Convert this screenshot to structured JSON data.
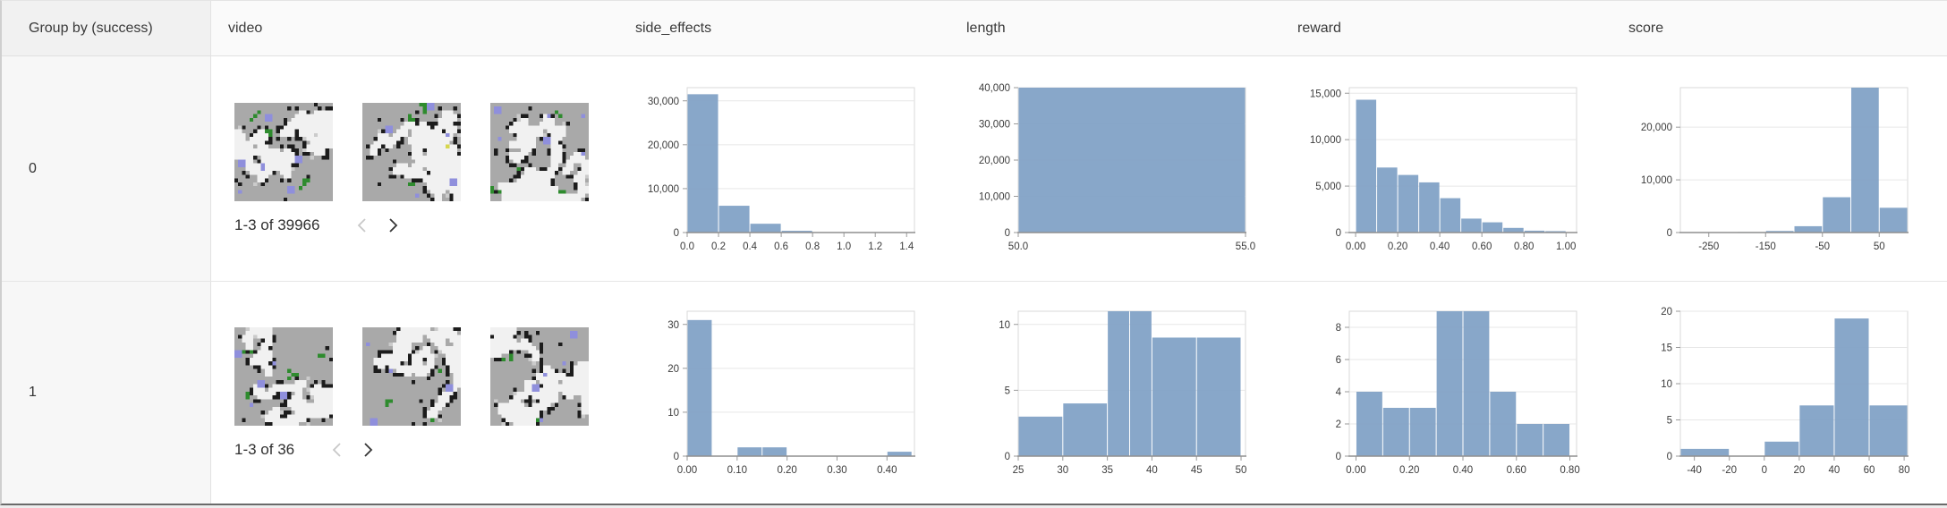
{
  "header": {
    "group_label": "Group by (success)",
    "columns": [
      "video",
      "side_effects",
      "length",
      "reward",
      "score"
    ]
  },
  "palette": {
    "bar_color": "#82a2c6",
    "thumb_base": "#a9a9a9",
    "thumb_path": "#f1f1f1",
    "thumb_light": "#cbcbcb",
    "thumb_wall": "#1c1c1c",
    "thumb_blue": "#8f8fdc",
    "thumb_green": "#2e8b2e",
    "thumb_yellow": "#d6d64e"
  },
  "rows": [
    {
      "group_value": "0",
      "video": {
        "pagination_label": "1-3 of 39966",
        "prev_enabled": false,
        "next_enabled": true,
        "thumbnails": [
          {
            "seed": 11,
            "yellow": false
          },
          {
            "seed": 47,
            "yellow": true
          },
          {
            "seed": 83,
            "yellow": false
          }
        ]
      }
    },
    {
      "group_value": "1",
      "video": {
        "pagination_label": "1-3 of 36",
        "prev_enabled": false,
        "next_enabled": true,
        "thumbnails": [
          {
            "seed": 19,
            "yellow": false
          },
          {
            "seed": 29,
            "yellow": false
          },
          {
            "seed": 57,
            "yellow": false
          }
        ]
      }
    }
  ],
  "chart_data": [
    {
      "type": "bar",
      "row_group": "0",
      "column": "side_effects",
      "bins": [
        [
          0.0,
          0.2,
          31500
        ],
        [
          0.2,
          0.4,
          6100
        ],
        [
          0.4,
          0.6,
          2000
        ],
        [
          0.6,
          0.8,
          400
        ]
      ],
      "x_domain": [
        0,
        1.45
      ],
      "y_domain": [
        0,
        33000
      ],
      "x_ticks": [
        [
          0.0,
          "0.0"
        ],
        [
          0.2,
          "0.2"
        ],
        [
          0.4,
          "0.4"
        ],
        [
          0.6,
          "0.6"
        ],
        [
          0.8,
          "0.8"
        ],
        [
          1.0,
          "1.0"
        ],
        [
          1.2,
          "1.2"
        ],
        [
          1.4,
          "1.4"
        ]
      ],
      "y_ticks": [
        [
          0,
          "0"
        ],
        [
          10000,
          "10,000"
        ],
        [
          20000,
          "20,000"
        ],
        [
          30000,
          "30,000"
        ]
      ]
    },
    {
      "type": "bar",
      "row_group": "0",
      "column": "length",
      "bins": [
        [
          50,
          55,
          40000
        ]
      ],
      "x_domain": [
        50,
        55
      ],
      "y_domain": [
        0,
        40000
      ],
      "x_ticks": [
        [
          50,
          "50.0"
        ],
        [
          55,
          "55.0"
        ]
      ],
      "y_ticks": [
        [
          0,
          "0"
        ],
        [
          10000,
          "10,000"
        ],
        [
          20000,
          "20,000"
        ],
        [
          30000,
          "30,000"
        ],
        [
          40000,
          "40,000"
        ]
      ]
    },
    {
      "type": "bar",
      "row_group": "0",
      "column": "reward",
      "bins": [
        [
          0.0,
          0.1,
          14300
        ],
        [
          0.1,
          0.2,
          7000
        ],
        [
          0.2,
          0.3,
          6200
        ],
        [
          0.3,
          0.4,
          5400
        ],
        [
          0.4,
          0.5,
          3700
        ],
        [
          0.5,
          0.6,
          1500
        ],
        [
          0.6,
          0.7,
          1100
        ],
        [
          0.7,
          0.8,
          500
        ],
        [
          0.8,
          0.9,
          200
        ],
        [
          0.9,
          1.0,
          150
        ]
      ],
      "x_domain": [
        -0.03,
        1.05
      ],
      "y_domain": [
        0,
        15600
      ],
      "x_ticks": [
        [
          0.0,
          "0.00"
        ],
        [
          0.2,
          "0.20"
        ],
        [
          0.4,
          "0.40"
        ],
        [
          0.6,
          "0.60"
        ],
        [
          0.8,
          "0.80"
        ],
        [
          1.0,
          "1.00"
        ]
      ],
      "y_ticks": [
        [
          0,
          "0"
        ],
        [
          5000,
          "5,000"
        ],
        [
          10000,
          "10,000"
        ],
        [
          15000,
          "15,000"
        ]
      ]
    },
    {
      "type": "bar",
      "row_group": "0",
      "column": "score",
      "bins": [
        [
          -200,
          -150,
          100
        ],
        [
          -150,
          -100,
          300
        ],
        [
          -100,
          -50,
          1200
        ],
        [
          -50,
          0,
          6700
        ],
        [
          0,
          50,
          27500
        ],
        [
          50,
          100,
          4700
        ]
      ],
      "x_domain": [
        -300,
        100
      ],
      "y_domain": [
        0,
        27500
      ],
      "x_ticks": [
        [
          -250,
          "-250"
        ],
        [
          -150,
          "-150"
        ],
        [
          -50,
          "-50"
        ],
        [
          50,
          "50"
        ]
      ],
      "y_ticks": [
        [
          0,
          "0"
        ],
        [
          10000,
          "10,000"
        ],
        [
          20000,
          "20,000"
        ]
      ]
    },
    {
      "type": "bar",
      "row_group": "1",
      "column": "side_effects",
      "bins": [
        [
          0.0,
          0.05,
          31
        ],
        [
          0.1,
          0.15,
          2
        ],
        [
          0.15,
          0.2,
          2
        ],
        [
          0.4,
          0.45,
          1
        ]
      ],
      "x_domain": [
        0,
        0.455
      ],
      "y_domain": [
        0,
        33
      ],
      "x_ticks": [
        [
          0.0,
          "0.00"
        ],
        [
          0.1,
          "0.10"
        ],
        [
          0.2,
          "0.20"
        ],
        [
          0.3,
          "0.30"
        ],
        [
          0.4,
          "0.40"
        ]
      ],
      "y_ticks": [
        [
          0,
          "0"
        ],
        [
          10,
          "10"
        ],
        [
          20,
          "20"
        ],
        [
          30,
          "30"
        ]
      ]
    },
    {
      "type": "bar",
      "row_group": "1",
      "column": "length",
      "bins": [
        [
          25,
          30,
          3
        ],
        [
          30,
          35,
          4
        ],
        [
          35,
          37.5,
          11
        ],
        [
          37.5,
          40,
          11
        ],
        [
          40,
          45,
          9
        ],
        [
          45,
          50,
          9
        ]
      ],
      "x_domain": [
        25,
        50.5
      ],
      "y_domain": [
        0,
        11
      ],
      "x_ticks": [
        [
          25,
          "25"
        ],
        [
          30,
          "30"
        ],
        [
          35,
          "35"
        ],
        [
          40,
          "40"
        ],
        [
          45,
          "45"
        ],
        [
          50,
          "50"
        ]
      ],
      "y_ticks": [
        [
          0,
          "0"
        ],
        [
          5,
          "5"
        ],
        [
          10,
          "10"
        ]
      ]
    },
    {
      "type": "bar",
      "row_group": "1",
      "column": "reward",
      "bins": [
        [
          0.0,
          0.1,
          4
        ],
        [
          0.1,
          0.2,
          3
        ],
        [
          0.2,
          0.3,
          3
        ],
        [
          0.3,
          0.4,
          9
        ],
        [
          0.4,
          0.5,
          9
        ],
        [
          0.5,
          0.6,
          4
        ],
        [
          0.6,
          0.7,
          2
        ],
        [
          0.7,
          0.8,
          2
        ]
      ],
      "x_domain": [
        -0.025,
        0.825
      ],
      "y_domain": [
        0,
        9
      ],
      "x_ticks": [
        [
          0.0,
          "0.00"
        ],
        [
          0.2,
          "0.20"
        ],
        [
          0.4,
          "0.40"
        ],
        [
          0.6,
          "0.60"
        ],
        [
          0.8,
          "0.80"
        ]
      ],
      "y_ticks": [
        [
          0,
          "0"
        ],
        [
          2,
          "2"
        ],
        [
          4,
          "4"
        ],
        [
          6,
          "6"
        ],
        [
          8,
          "8"
        ]
      ]
    },
    {
      "type": "bar",
      "row_group": "1",
      "column": "score",
      "bins": [
        [
          -48,
          -20,
          1
        ],
        [
          0,
          20,
          2
        ],
        [
          20,
          40,
          7
        ],
        [
          40,
          60,
          19
        ],
        [
          60,
          82,
          7
        ]
      ],
      "x_domain": [
        -48,
        82
      ],
      "y_domain": [
        0,
        20
      ],
      "x_ticks": [
        [
          -40,
          "-40"
        ],
        [
          -20,
          "-20"
        ],
        [
          0,
          "0"
        ],
        [
          20,
          "20"
        ],
        [
          40,
          "40"
        ],
        [
          60,
          "60"
        ],
        [
          80,
          "80"
        ]
      ],
      "y_ticks": [
        [
          0,
          "0"
        ],
        [
          5,
          "5"
        ],
        [
          10,
          "10"
        ],
        [
          15,
          "15"
        ],
        [
          20,
          "20"
        ]
      ]
    }
  ]
}
